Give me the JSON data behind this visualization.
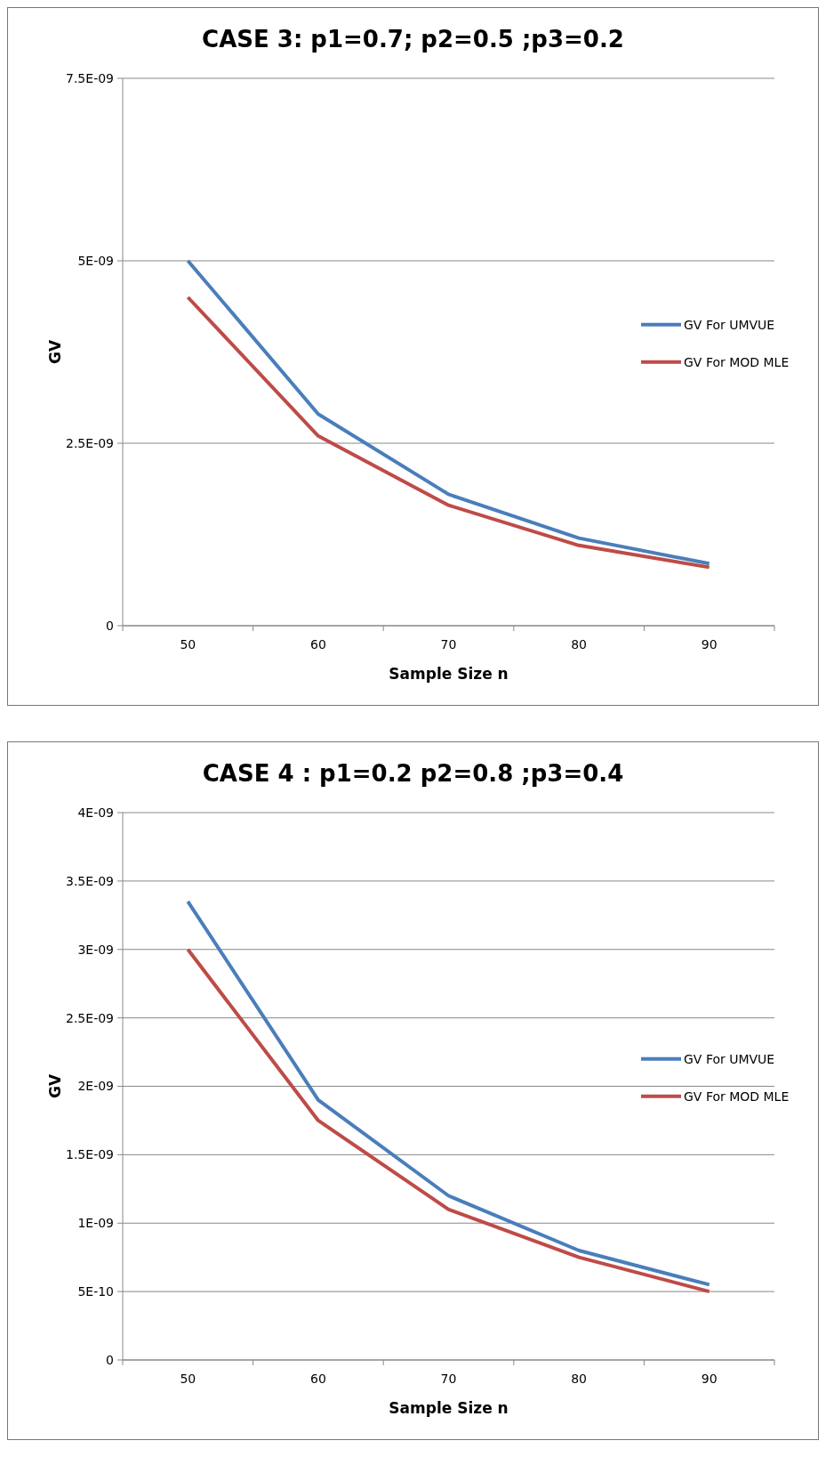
{
  "chart_data": [
    {
      "type": "line",
      "title": "CASE 3: p1=0.7; p2=0.5 ;p3=0.2",
      "xlabel": "Sample Size n",
      "ylabel": "GV",
      "categories": [
        "50",
        "60",
        "70",
        "80",
        "90"
      ],
      "series": [
        {
          "name": "GV For UMVUE",
          "color": "#4a7ebb",
          "values": [
            5e-09,
            2.9e-09,
            1.8e-09,
            1.2e-09,
            8.5e-10
          ]
        },
        {
          "name": "GV For MOD MLE",
          "color": "#be4b48",
          "values": [
            4.5e-09,
            2.6e-09,
            1.65e-09,
            1.1e-09,
            8e-10
          ]
        }
      ],
      "ylim": [
        0,
        7.5e-09
      ],
      "yticks": [
        {
          "value": 0,
          "label": "0"
        },
        {
          "value": 2.5e-09,
          "label": "2.5E-09"
        },
        {
          "value": 5e-09,
          "label": "5E-09"
        },
        {
          "value": 7.5e-09,
          "label": "7.5E-09"
        }
      ],
      "grid": "y",
      "legend": "right",
      "marker": "none",
      "line_style": "solid"
    },
    {
      "type": "line",
      "title": "CASE 4 : p1=0.2  p2=0.8 ;p3=0.4",
      "xlabel": "Sample Size n",
      "ylabel": "GV",
      "categories": [
        "50",
        "60",
        "70",
        "80",
        "90"
      ],
      "series": [
        {
          "name": "GV For UMVUE",
          "color": "#4a7ebb",
          "values": [
            3.35e-09,
            1.9e-09,
            1.2e-09,
            8e-10,
            5.5e-10
          ]
        },
        {
          "name": "GV For MOD MLE",
          "color": "#be4b48",
          "values": [
            3e-09,
            1.75e-09,
            1.1e-09,
            7.5e-10,
            5e-10
          ]
        }
      ],
      "ylim": [
        0,
        4e-09
      ],
      "yticks": [
        {
          "value": 0,
          "label": "0"
        },
        {
          "value": 5e-10,
          "label": "5E-10"
        },
        {
          "value": 1e-09,
          "label": "1E-09"
        },
        {
          "value": 1.5e-09,
          "label": "1.5E-09"
        },
        {
          "value": 2e-09,
          "label": "2E-09"
        },
        {
          "value": 2.5e-09,
          "label": "2.5E-09"
        },
        {
          "value": 3e-09,
          "label": "3E-09"
        },
        {
          "value": 3.5e-09,
          "label": "3.5E-09"
        },
        {
          "value": 4e-09,
          "label": "4E-09"
        }
      ],
      "grid": "y",
      "legend": "right",
      "marker": "none",
      "line_style": "solid"
    }
  ]
}
